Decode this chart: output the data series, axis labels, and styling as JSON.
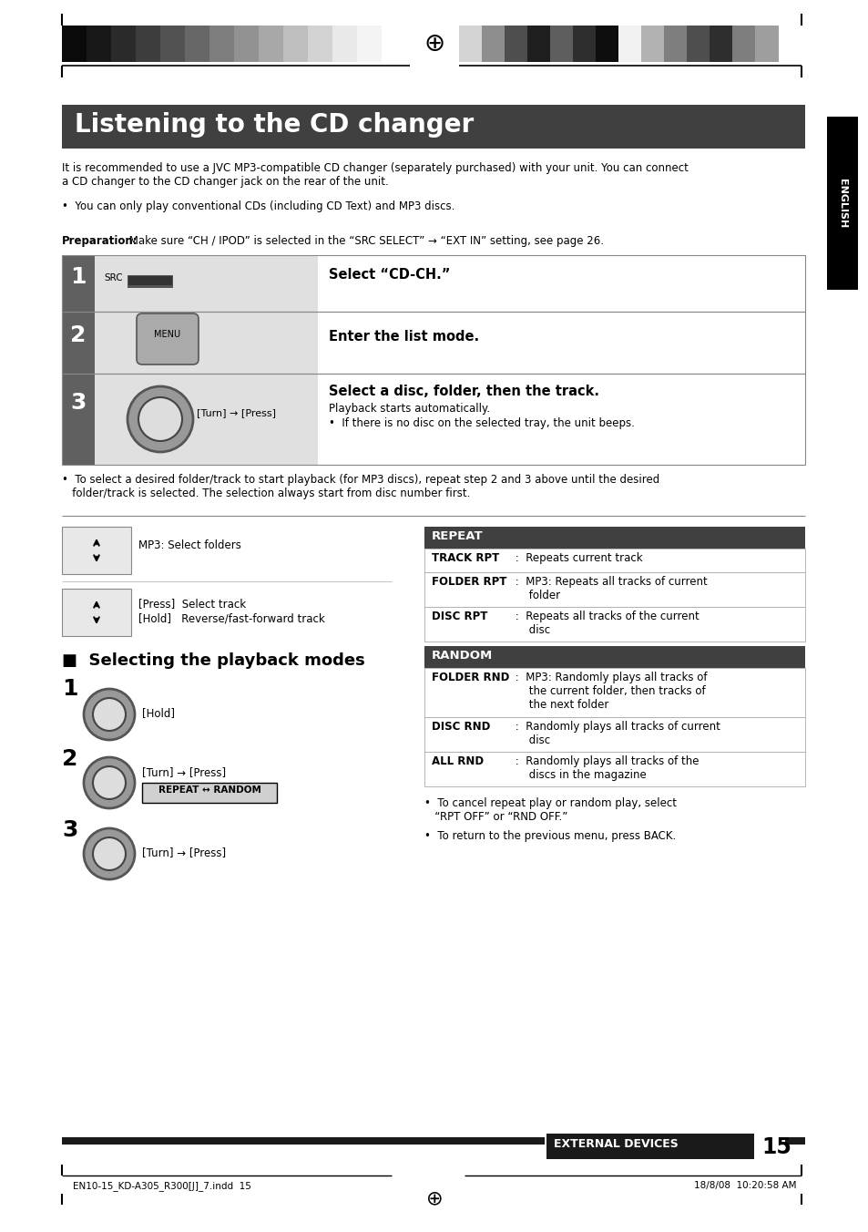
{
  "page_bg": "#ffffff",
  "title_text": "Listening to the CD changer",
  "title_bg": "#404040",
  "title_color": "#ffffff",
  "body_text_1": "It is recommended to use a JVC MP3-compatible CD changer (separately purchased) with your unit. You can connect\na CD changer to the CD changer jack on the rear of the unit.",
  "body_bullet_1": "•  You can only play conventional CDs (including CD Text) and MP3 discs.",
  "prep_label": "Preparation:",
  "prep_text": " Make sure “CH / IPOD” is selected in the “SRC SELECT” → “EXT IN” setting, see page 26.",
  "step_num_bg": "#606060",
  "step_icon_bg": "#e0e0e0",
  "note_text": "•  To select a desired folder/track to start playback (for MP3 discs), repeat step 2 and 3 above until the desired\n   folder/track is selected. The selection always start from disc number first.",
  "section2_title": "■  Selecting the playback modes",
  "repeat_header": "REPEAT",
  "repeat_header_bg": "#404040",
  "repeat_rows": [
    {
      "label": "TRACK RPT",
      "desc": " :  Repeats current track"
    },
    {
      "label": "FOLDER RPT",
      "desc": " :  MP3: Repeats all tracks of current\n     folder"
    },
    {
      "label": "DISC RPT",
      "desc": " :  Repeats all tracks of the current\n     disc"
    }
  ],
  "random_header": "RANDOM",
  "random_header_bg": "#404040",
  "random_rows": [
    {
      "label": "FOLDER RND",
      "desc": " :  MP3: Randomly plays all tracks of\n     the current folder, then tracks of\n     the next folder"
    },
    {
      "label": "DISC RND",
      "desc": " :  Randomly plays all tracks of current\n     disc"
    },
    {
      "label": "ALL RND",
      "desc": " :  Randomly plays all tracks of the\n     discs in the magazine"
    }
  ],
  "bottom_notes": [
    "•  To cancel repeat play or random play, select\n   “RPT OFF” or “RND OFF.”",
    "•  To return to the previous menu, press BACK."
  ],
  "footer_label": "EXTERNAL DEVICES",
  "footer_page": "15",
  "footer_left_text": "EN10-15_KD-A305_R300[J]_7.indd  15",
  "footer_right_text": "18/8/08  10:20:58 AM",
  "colors_left": [
    "#0a0a0a",
    "#181818",
    "#2a2a2a",
    "#3d3d3d",
    "#525252",
    "#676767",
    "#7d7d7d",
    "#929292",
    "#a8a8a8",
    "#bebebe",
    "#d3d3d3",
    "#e9e9e9",
    "#f4f4f4",
    "#ffffff"
  ],
  "colors_right": [
    "#d4d4d4",
    "#8e8e8e",
    "#4e4e4e",
    "#1e1e1e",
    "#5e5e5e",
    "#2e2e2e",
    "#0e0e0e",
    "#f2f2f2",
    "#b2b2b2",
    "#7e7e7e",
    "#4e4e4e",
    "#2e2e2e",
    "#7e7e7e",
    "#9e9e9e"
  ]
}
